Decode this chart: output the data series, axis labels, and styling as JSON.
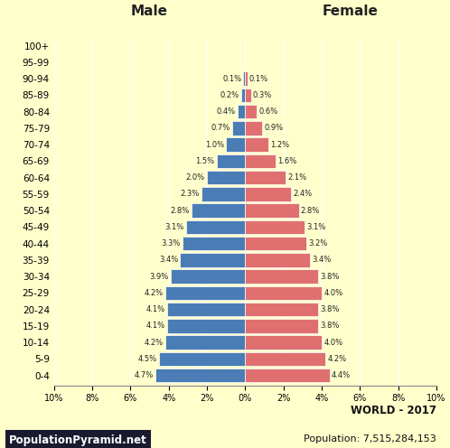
{
  "age_groups": [
    "0-4",
    "5-9",
    "10-14",
    "15-19",
    "20-24",
    "25-29",
    "30-34",
    "35-39",
    "40-44",
    "45-49",
    "50-54",
    "55-59",
    "60-64",
    "65-69",
    "70-74",
    "75-79",
    "80-84",
    "85-89",
    "90-94",
    "95-99",
    "100+"
  ],
  "male": [
    4.7,
    4.5,
    4.2,
    4.1,
    4.1,
    4.2,
    3.9,
    3.4,
    3.3,
    3.1,
    2.8,
    2.3,
    2.0,
    1.5,
    1.0,
    0.7,
    0.4,
    0.2,
    0.1,
    0.0,
    0.0
  ],
  "female": [
    4.4,
    4.2,
    4.0,
    3.8,
    3.8,
    4.0,
    3.8,
    3.4,
    3.2,
    3.1,
    2.8,
    2.4,
    2.1,
    1.6,
    1.2,
    0.9,
    0.6,
    0.3,
    0.1,
    0.0,
    0.0
  ],
  "male_color": "#4a7db5",
  "female_color": "#e07070",
  "background_color": "#ffffcc",
  "title_male": "Male",
  "title_female": "Female",
  "footer_left": "PopulationPyramid.net",
  "footer_right_line1": "WORLD - 2017",
  "footer_right_line2": "Population: 7,515,284,153",
  "xlim": 10,
  "bar_height": 0.85,
  "label_fontsize": 6.0,
  "ytick_fontsize": 7.5,
  "xtick_fontsize": 7.0,
  "title_fontsize": 11
}
